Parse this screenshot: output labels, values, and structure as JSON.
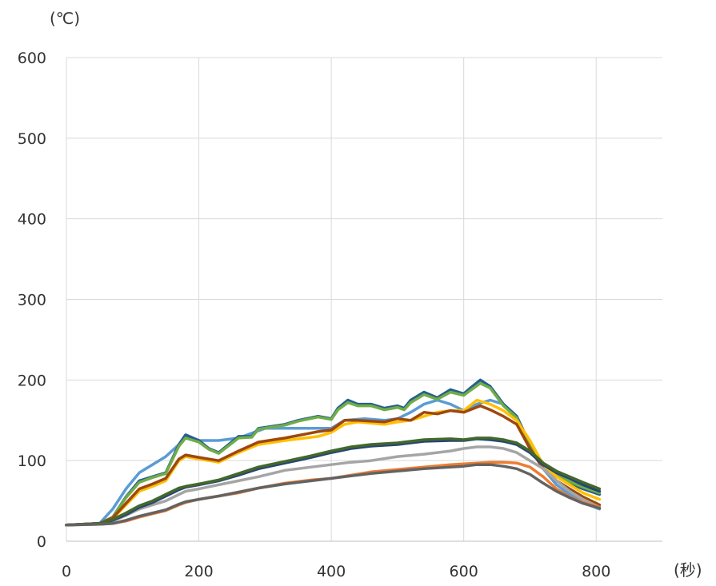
{
  "chart_data": {
    "type": "line",
    "title": "",
    "ylabel": "(℃)",
    "xlabel": "(秒)",
    "xlim": [
      0,
      900
    ],
    "ylim": [
      0,
      600
    ],
    "xticks": [
      0,
      200,
      400,
      600,
      800
    ],
    "yticks": [
      0,
      100,
      200,
      300,
      400,
      500,
      600
    ],
    "grid": true,
    "legend": "none",
    "series": [
      {
        "color": "#5b9bd5",
        "x": [
          0,
          50,
          70,
          90,
          110,
          130,
          150,
          170,
          180,
          200,
          230,
          260,
          300,
          350,
          400,
          420,
          450,
          480,
          500,
          520,
          540,
          560,
          580,
          600,
          620,
          640,
          660,
          680,
          700,
          720,
          740,
          760,
          780,
          805
        ],
        "y": [
          20,
          22,
          40,
          65,
          85,
          95,
          105,
          120,
          130,
          125,
          125,
          128,
          140,
          140,
          140,
          150,
          152,
          150,
          152,
          160,
          170,
          175,
          170,
          162,
          170,
          175,
          170,
          155,
          120,
          90,
          70,
          58,
          48,
          40
        ]
      },
      {
        "color": "#255e91",
        "x": [
          0,
          50,
          70,
          90,
          110,
          130,
          150,
          170,
          180,
          200,
          215,
          230,
          260,
          280,
          290,
          330,
          350,
          380,
          400,
          410,
          425,
          440,
          460,
          480,
          500,
          510,
          520,
          540,
          560,
          580,
          600,
          610,
          625,
          640,
          660,
          680,
          700,
          720,
          740,
          760,
          780,
          805
        ],
        "y": [
          20,
          22,
          30,
          55,
          75,
          80,
          85,
          120,
          132,
          125,
          115,
          110,
          130,
          130,
          140,
          145,
          150,
          155,
          152,
          165,
          175,
          170,
          170,
          165,
          168,
          165,
          175,
          185,
          178,
          188,
          183,
          190,
          200,
          192,
          170,
          155,
          120,
          95,
          80,
          72,
          65,
          58
        ]
      },
      {
        "color": "#70ad47",
        "x": [
          0,
          50,
          70,
          90,
          110,
          130,
          150,
          170,
          180,
          200,
          215,
          230,
          260,
          280,
          290,
          330,
          350,
          380,
          400,
          410,
          425,
          440,
          460,
          480,
          500,
          510,
          520,
          540,
          560,
          580,
          600,
          610,
          625,
          640,
          660,
          680,
          700,
          720,
          740,
          760,
          780,
          805
        ],
        "y": [
          20,
          22,
          30,
          54,
          73,
          79,
          84,
          118,
          128,
          123,
          114,
          109,
          128,
          129,
          139,
          144,
          149,
          154,
          151,
          163,
          172,
          168,
          168,
          163,
          166,
          163,
          172,
          182,
          176,
          185,
          181,
          187,
          196,
          190,
          168,
          153,
          118,
          96,
          82,
          74,
          67,
          60
        ]
      },
      {
        "color": "#ffc000",
        "x": [
          0,
          50,
          70,
          90,
          110,
          130,
          150,
          170,
          180,
          200,
          230,
          260,
          290,
          330,
          380,
          400,
          420,
          440,
          480,
          500,
          520,
          540,
          560,
          580,
          600,
          620,
          640,
          660,
          680,
          700,
          720,
          740,
          760,
          780,
          805
        ],
        "y": [
          20,
          22,
          28,
          45,
          62,
          68,
          75,
          100,
          105,
          102,
          98,
          110,
          120,
          125,
          130,
          135,
          145,
          148,
          145,
          148,
          150,
          155,
          160,
          162,
          162,
          175,
          170,
          162,
          150,
          125,
          95,
          80,
          70,
          60,
          52
        ]
      },
      {
        "color": "#9e480e",
        "x": [
          0,
          50,
          70,
          90,
          110,
          130,
          150,
          170,
          180,
          200,
          230,
          260,
          290,
          330,
          380,
          400,
          420,
          440,
          480,
          500,
          520,
          540,
          560,
          580,
          600,
          625,
          640,
          660,
          680,
          700,
          720,
          740,
          760,
          780,
          805
        ],
        "y": [
          20,
          22,
          29,
          47,
          65,
          71,
          78,
          102,
          107,
          104,
          100,
          112,
          123,
          128,
          136,
          138,
          150,
          150,
          148,
          152,
          150,
          160,
          158,
          162,
          160,
          168,
          163,
          155,
          145,
          115,
          90,
          75,
          65,
          55,
          45
        ]
      },
      {
        "color": "#a5a5a5",
        "x": [
          0,
          50,
          70,
          90,
          110,
          130,
          150,
          170,
          180,
          200,
          230,
          260,
          290,
          330,
          370,
          400,
          430,
          460,
          500,
          540,
          580,
          600,
          620,
          640,
          660,
          680,
          700,
          720,
          740,
          760,
          780,
          805
        ],
        "y": [
          20,
          22,
          25,
          32,
          40,
          45,
          50,
          58,
          62,
          65,
          70,
          75,
          80,
          88,
          92,
          95,
          98,
          100,
          105,
          108,
          112,
          115,
          117,
          117,
          115,
          110,
          100,
          90,
          75,
          62,
          52,
          42
        ]
      },
      {
        "color": "#ed7d31",
        "x": [
          0,
          50,
          70,
          90,
          110,
          130,
          150,
          170,
          180,
          200,
          230,
          260,
          290,
          330,
          370,
          400,
          430,
          460,
          500,
          540,
          580,
          600,
          620,
          640,
          660,
          680,
          700,
          720,
          740,
          760,
          780,
          805
        ],
        "y": [
          20,
          21,
          22,
          25,
          30,
          34,
          38,
          45,
          48,
          52,
          56,
          60,
          66,
          72,
          76,
          78,
          82,
          86,
          89,
          92,
          95,
          96,
          97,
          98,
          98,
          97,
          92,
          80,
          65,
          55,
          48,
          42
        ]
      },
      {
        "color": "#264478",
        "x": [
          0,
          50,
          70,
          90,
          110,
          130,
          150,
          170,
          180,
          200,
          230,
          260,
          290,
          330,
          370,
          400,
          430,
          460,
          500,
          540,
          580,
          600,
          620,
          640,
          660,
          680,
          700,
          720,
          740,
          760,
          780,
          805
        ],
        "y": [
          20,
          22,
          26,
          33,
          42,
          48,
          56,
          64,
          67,
          70,
          75,
          82,
          90,
          97,
          104,
          110,
          115,
          118,
          120,
          124,
          125,
          125,
          127,
          126,
          124,
          120,
          110,
          95,
          85,
          78,
          70,
          62
        ]
      },
      {
        "color": "#43682b",
        "x": [
          0,
          50,
          70,
          90,
          110,
          130,
          150,
          170,
          180,
          200,
          230,
          260,
          290,
          330,
          370,
          400,
          430,
          460,
          500,
          540,
          580,
          600,
          620,
          640,
          660,
          680,
          700,
          720,
          740,
          760,
          780,
          805
        ],
        "y": [
          20,
          22,
          27,
          35,
          44,
          50,
          58,
          66,
          68,
          71,
          76,
          84,
          92,
          99,
          106,
          112,
          117,
          120,
          122,
          126,
          127,
          126,
          128,
          128,
          126,
          122,
          112,
          97,
          87,
          80,
          73,
          65
        ]
      },
      {
        "color": "#636363",
        "x": [
          0,
          50,
          70,
          90,
          110,
          130,
          150,
          170,
          180,
          200,
          230,
          260,
          290,
          330,
          370,
          400,
          430,
          460,
          500,
          540,
          580,
          600,
          620,
          640,
          660,
          680,
          700,
          720,
          740,
          760,
          780,
          805
        ],
        "y": [
          20,
          21,
          22,
          26,
          31,
          35,
          39,
          46,
          49,
          52,
          56,
          61,
          66,
          71,
          75,
          78,
          81,
          84,
          87,
          90,
          92,
          93,
          95,
          95,
          93,
          90,
          83,
          72,
          62,
          54,
          47,
          41
        ]
      }
    ]
  }
}
